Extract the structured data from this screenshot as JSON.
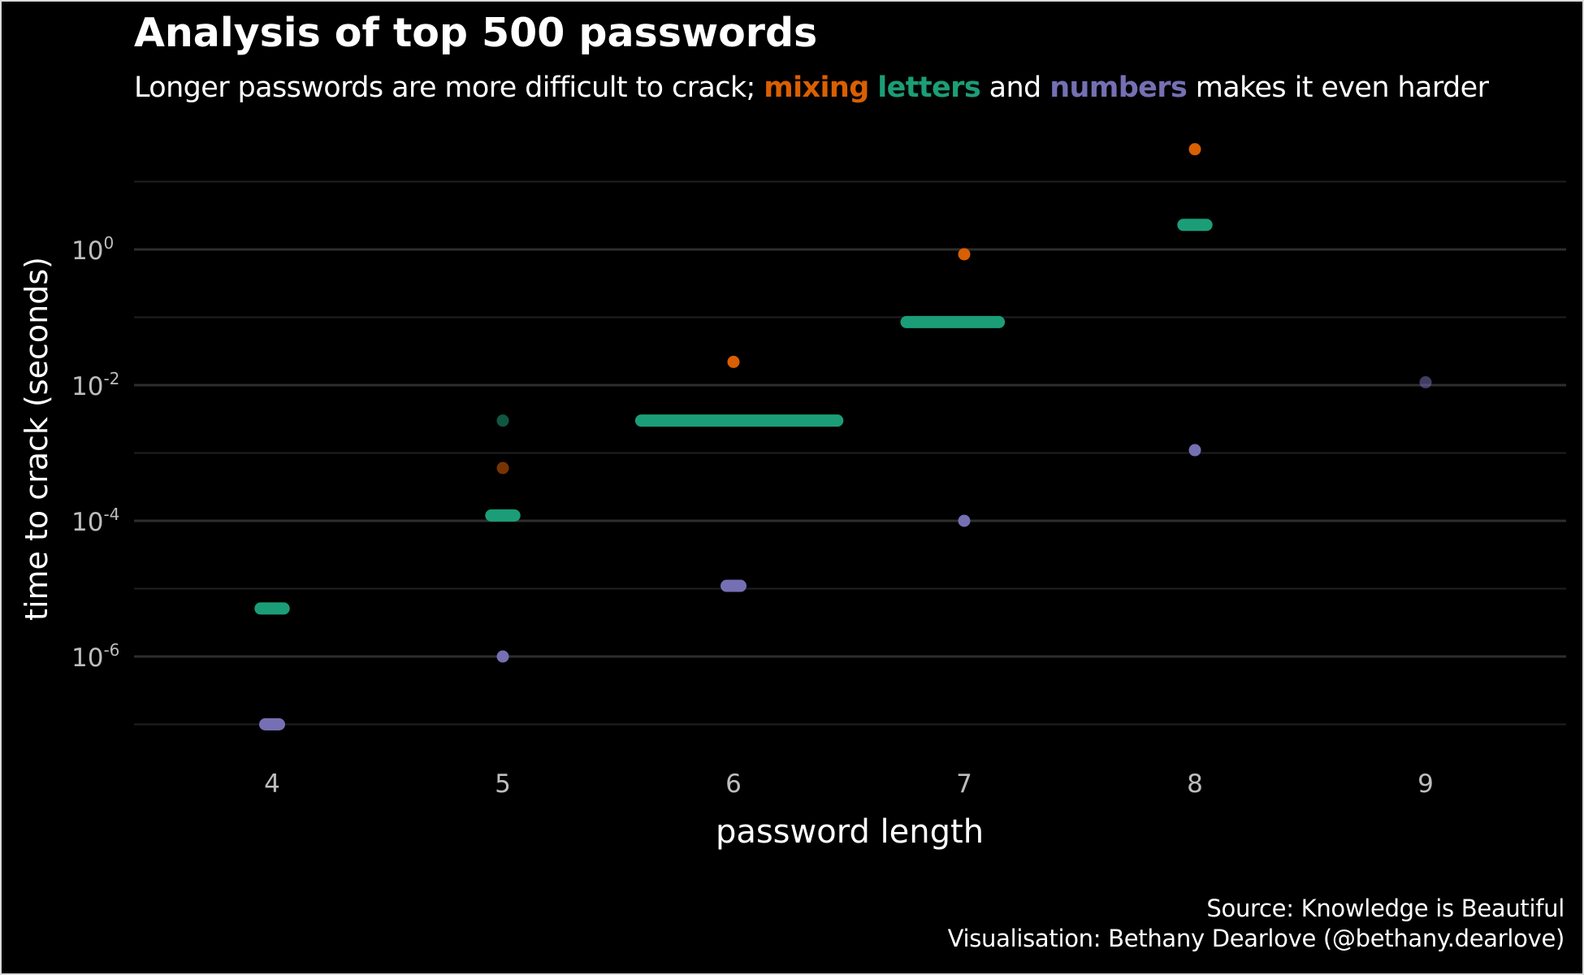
{
  "title": "Analysis of top 500 passwords",
  "subtitle": {
    "text1": "Longer passwords are more difficult to crack;",
    "mixing": "mixing",
    "letters": "letters",
    "and": "and",
    "numbers": "numbers",
    "text2": "makes it even harder"
  },
  "caption": {
    "source": "Source: Knowledge is Beautiful",
    "author": "Visualisation: Bethany Dearlove (@bethany.dearlove)"
  },
  "colors": {
    "background": "#000000",
    "mixing": "#d95f02",
    "letters": "#1b9e77",
    "numbers": "#7570b3",
    "grid": "#2b2b2b",
    "tick": "#bdbdbd"
  },
  "chart_data": {
    "type": "scatter",
    "xlabel": "password length",
    "ylabel": "time to crack (seconds)",
    "y_scale": "log10",
    "grid": true,
    "legend": "none (colours explained in subtitle)",
    "x_ticks": [
      "4",
      "5",
      "6",
      "7",
      "8",
      "9"
    ],
    "y_ticks": [
      {
        "base": "10",
        "exp": "-6",
        "value": 1e-06
      },
      {
        "base": "10",
        "exp": "-4",
        "value": 0.0001
      },
      {
        "base": "10",
        "exp": "-2",
        "value": 0.01
      },
      {
        "base": "10",
        "exp": "0",
        "value": 1
      }
    ],
    "series": [
      {
        "name": "mixing",
        "color": "#d95f02",
        "points": [
          {
            "x": 5,
            "y": 0.0006,
            "faded": true
          },
          {
            "x": 6,
            "y": 0.022
          },
          {
            "x": 7,
            "y": 0.85
          },
          {
            "x": 8,
            "y": 30
          }
        ]
      },
      {
        "name": "letters",
        "color": "#1b9e77",
        "points": [
          {
            "x": 4,
            "y": 5.1e-06,
            "spread": [
              3.95,
              4.05
            ]
          },
          {
            "x": 5,
            "y": 0.003,
            "faded": true
          },
          {
            "x": 5,
            "y": 0.00012,
            "spread": [
              4.95,
              5.05
            ]
          },
          {
            "x": 6,
            "y": 0.003,
            "spread": [
              5.6,
              6.45
            ]
          },
          {
            "x": 7,
            "y": 0.085,
            "spread": [
              6.75,
              7.15
            ]
          },
          {
            "x": 8,
            "y": 2.3,
            "spread": [
              7.95,
              8.05
            ]
          }
        ]
      },
      {
        "name": "numbers",
        "color": "#7570b3",
        "points": [
          {
            "x": 4,
            "y": 1e-07,
            "spread": [
              3.97,
              4.03
            ]
          },
          {
            "x": 5,
            "y": 1e-06
          },
          {
            "x": 6,
            "y": 1.1e-05,
            "spread": [
              5.97,
              6.03
            ]
          },
          {
            "x": 7,
            "y": 0.0001
          },
          {
            "x": 8,
            "y": 0.0011
          },
          {
            "x": 9,
            "y": 0.011,
            "faded": true
          }
        ]
      }
    ]
  }
}
